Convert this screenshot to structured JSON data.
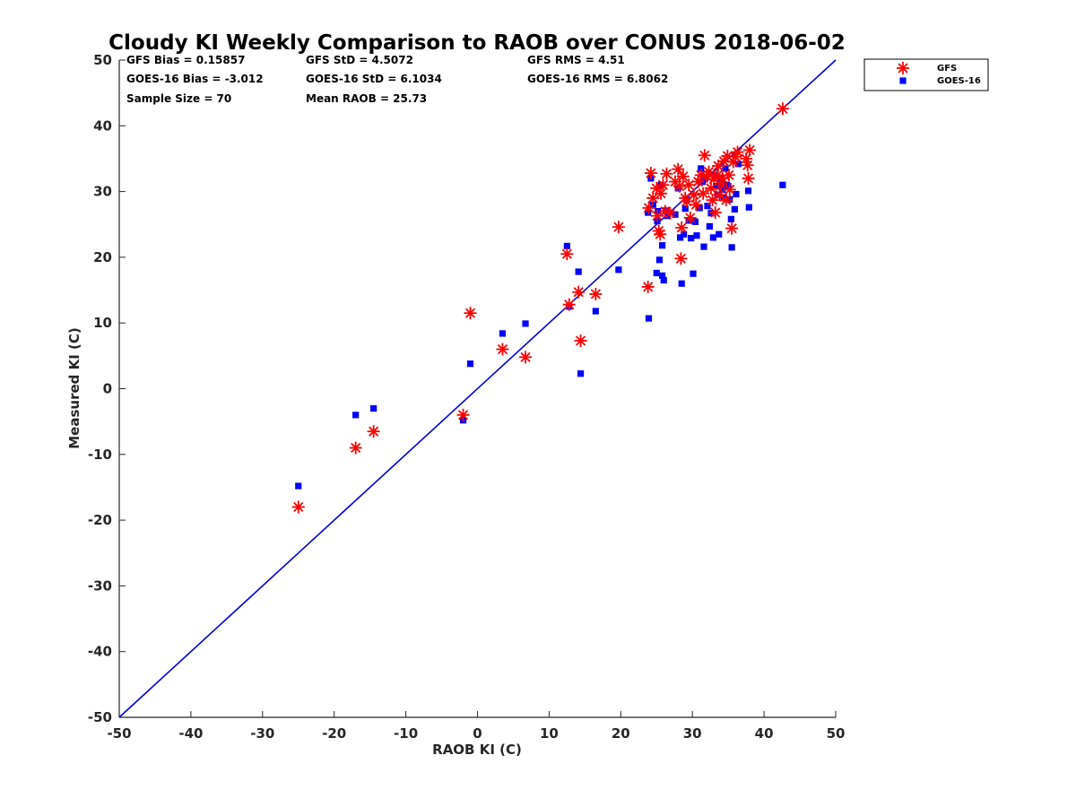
{
  "chart_data": {
    "type": "scatter",
    "title": "Cloudy KI Weekly Comparison to RAOB over CONUS 2018-06-02",
    "xlabel": "RAOB KI (C)",
    "ylabel": "Measured KI (C)",
    "xlim": [
      -50,
      50
    ],
    "ylim": [
      -50,
      50
    ],
    "xticks": [
      "-50",
      "-40",
      "-30",
      "-20",
      "-10",
      "0",
      "10",
      "20",
      "30",
      "40",
      "50"
    ],
    "yticks": [
      "-50",
      "-40",
      "-30",
      "-20",
      "-10",
      "0",
      "10",
      "20",
      "30",
      "40",
      "50"
    ],
    "grid": false,
    "legend_position": "outside-top-right",
    "reference_line": {
      "from": [
        -50,
        -50
      ],
      "to": [
        50,
        50
      ],
      "color": "#0000dd"
    },
    "stats": [
      [
        "GFS Bias = 0.15857",
        "GFS StD = 4.5072",
        "GFS RMS = 4.51"
      ],
      [
        "GOES-16 Bias = -3.012",
        "GOES-16 StD = 6.1034",
        "GOES-16 RMS = 6.8062"
      ],
      [
        "Sample Size = 70",
        "Mean RAOB = 25.73",
        ""
      ]
    ],
    "series": [
      {
        "name": "GFS",
        "marker": "asterisk",
        "color": "#ff0000",
        "points": [
          [
            -25,
            -18
          ],
          [
            -17,
            -9
          ],
          [
            -14.5,
            -6.5
          ],
          [
            -2,
            -4
          ],
          [
            -1,
            11.5
          ],
          [
            3.5,
            6
          ],
          [
            6.7,
            4.8
          ],
          [
            12.5,
            20.5
          ],
          [
            12.8,
            12.8
          ],
          [
            14.1,
            14.7
          ],
          [
            14.4,
            7.3
          ],
          [
            16.5,
            14.4
          ],
          [
            19.7,
            24.6
          ],
          [
            23.8,
            15.5
          ],
          [
            23.9,
            27.5
          ],
          [
            24.2,
            32.8
          ],
          [
            24.5,
            29
          ],
          [
            25,
            30.5
          ],
          [
            25.1,
            26.3
          ],
          [
            25.3,
            24
          ],
          [
            25.5,
            23.5
          ],
          [
            25.6,
            29.7
          ],
          [
            25.9,
            31
          ],
          [
            26.2,
            27
          ],
          [
            26.4,
            32.7
          ],
          [
            26.9,
            26.7
          ],
          [
            27.6,
            31.5
          ],
          [
            28,
            33.4
          ],
          [
            28.2,
            30.8
          ],
          [
            28.4,
            19.8
          ],
          [
            28.5,
            24.5
          ],
          [
            28.7,
            32.3
          ],
          [
            29,
            29
          ],
          [
            29.2,
            28.5
          ],
          [
            29.5,
            31
          ],
          [
            29.7,
            26
          ],
          [
            30.2,
            29.5
          ],
          [
            30.5,
            28
          ],
          [
            30.8,
            31.5
          ],
          [
            31.2,
            32.5
          ],
          [
            31.5,
            29.7
          ],
          [
            31.7,
            35.5
          ],
          [
            32,
            32.3
          ],
          [
            32.3,
            33
          ],
          [
            32.6,
            30.5
          ],
          [
            32.8,
            28.7
          ],
          [
            33,
            31.9
          ],
          [
            33.2,
            26.8
          ],
          [
            33.5,
            32.5
          ],
          [
            33.6,
            33.9
          ],
          [
            33.8,
            29.5
          ],
          [
            34,
            31
          ],
          [
            34.2,
            32
          ],
          [
            34.4,
            34.6
          ],
          [
            34.7,
            28.7
          ],
          [
            34.9,
            35.4
          ],
          [
            35.1,
            32.5
          ],
          [
            35.2,
            30.3
          ],
          [
            35.5,
            24.4
          ],
          [
            35.7,
            34.5
          ],
          [
            36,
            35.3
          ],
          [
            36.3,
            36
          ],
          [
            37.5,
            35
          ],
          [
            37.7,
            34
          ],
          [
            37.8,
            32
          ],
          [
            38,
            36.3
          ],
          [
            42.6,
            42.6
          ]
        ]
      },
      {
        "name": "GOES-16",
        "marker": "square",
        "color": "#0000ff",
        "points": [
          [
            -25,
            -14.8
          ],
          [
            -17,
            -4
          ],
          [
            -14.5,
            -3
          ],
          [
            -2,
            -4.8
          ],
          [
            -1,
            3.8
          ],
          [
            3.5,
            8.4
          ],
          [
            6.7,
            9.9
          ],
          [
            12.5,
            21.7
          ],
          [
            12.8,
            12.5
          ],
          [
            14.1,
            17.8
          ],
          [
            14.4,
            2.3
          ],
          [
            16.5,
            11.8
          ],
          [
            19.7,
            18.1
          ],
          [
            23.9,
            10.7
          ],
          [
            23.8,
            26.8
          ],
          [
            24.2,
            32
          ],
          [
            24.5,
            28
          ],
          [
            25,
            17.6
          ],
          [
            25.1,
            25.5
          ],
          [
            25.2,
            27
          ],
          [
            25.4,
            19.6
          ],
          [
            25.6,
            31
          ],
          [
            25.8,
            21.8
          ],
          [
            25.8,
            17.2
          ],
          [
            26,
            16.5
          ],
          [
            26.3,
            27.1
          ],
          [
            26.5,
            26.3
          ],
          [
            27.6,
            26.5
          ],
          [
            28,
            30.5
          ],
          [
            28.3,
            23
          ],
          [
            28.5,
            16
          ],
          [
            28.8,
            23.5
          ],
          [
            29,
            27.4
          ],
          [
            29.2,
            28.8
          ],
          [
            29.5,
            25.6
          ],
          [
            29.8,
            22.9
          ],
          [
            30.1,
            17.5
          ],
          [
            30.4,
            25.4
          ],
          [
            30.6,
            23.3
          ],
          [
            31,
            27.5
          ],
          [
            31.2,
            33.5
          ],
          [
            31.4,
            31.5
          ],
          [
            31.6,
            21.6
          ],
          [
            31.8,
            32
          ],
          [
            32.1,
            27.8
          ],
          [
            32.4,
            24.7
          ],
          [
            32.6,
            26.7
          ],
          [
            32.9,
            23
          ],
          [
            33.1,
            32.5
          ],
          [
            33.3,
            30.8
          ],
          [
            33.5,
            29.5
          ],
          [
            33.7,
            23.5
          ],
          [
            34,
            31.9
          ],
          [
            34.2,
            30.3
          ],
          [
            34.4,
            29
          ],
          [
            34.6,
            33.5
          ],
          [
            34.8,
            31
          ],
          [
            35,
            30.8
          ],
          [
            35.2,
            28.8
          ],
          [
            35.4,
            25.8
          ],
          [
            35.5,
            21.5
          ],
          [
            35.9,
            27.3
          ],
          [
            36.1,
            29.6
          ],
          [
            36.4,
            34.2
          ],
          [
            37.8,
            30.1
          ],
          [
            37.9,
            27.6
          ],
          [
            42.6,
            31
          ]
        ]
      }
    ]
  }
}
